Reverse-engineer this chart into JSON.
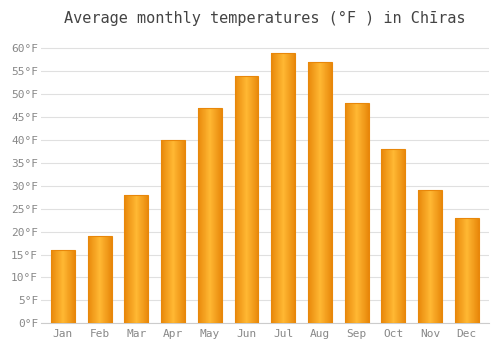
{
  "title": "Average monthly temperatures (°F ) in Chīras",
  "months": [
    "Jan",
    "Feb",
    "Mar",
    "Apr",
    "May",
    "Jun",
    "Jul",
    "Aug",
    "Sep",
    "Oct",
    "Nov",
    "Dec"
  ],
  "values": [
    16,
    19,
    28,
    40,
    47,
    54,
    59,
    57,
    48,
    38,
    29,
    23
  ],
  "bar_color_center": "#FFB833",
  "bar_color_edge": "#E8870A",
  "ylim": [
    0,
    63
  ],
  "yticks": [
    0,
    5,
    10,
    15,
    20,
    25,
    30,
    35,
    40,
    45,
    50,
    55,
    60
  ],
  "ytick_labels": [
    "0°F",
    "5°F",
    "10°F",
    "15°F",
    "20°F",
    "25°F",
    "30°F",
    "35°F",
    "40°F",
    "45°F",
    "50°F",
    "55°F",
    "60°F"
  ],
  "background_color": "#ffffff",
  "grid_color": "#e0e0e0",
  "title_fontsize": 11,
  "tick_fontsize": 8,
  "bar_width": 0.65
}
